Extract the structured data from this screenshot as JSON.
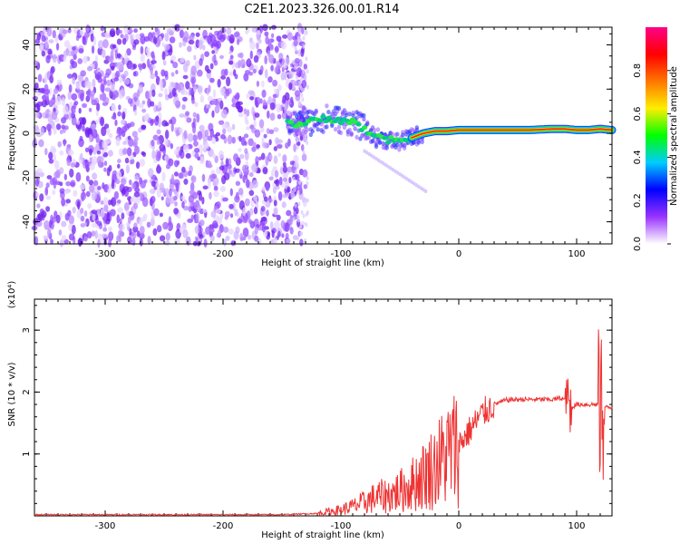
{
  "title": "C2E1.2023.326.00.01.R14",
  "chart_data": [
    {
      "type": "heatmap",
      "xlabel": "Height of straight line (km)",
      "ylabel": "Frequency (Hz)",
      "xlim": [
        -360,
        130
      ],
      "ylim": [
        -50,
        48
      ],
      "xticks": [
        -300,
        -200,
        -100,
        0,
        100
      ],
      "yticks": [
        -40,
        -20,
        0,
        20,
        40
      ],
      "colorbar": {
        "label": "Normalized spectral amplitude",
        "range": [
          0,
          1
        ],
        "ticks": [
          "0.0",
          "0.2",
          "0.4",
          "0.6",
          "0.8"
        ],
        "colormap": [
          "#ffffff",
          "#9933ff",
          "#0000ff",
          "#00ccff",
          "#00ff00",
          "#ffee00",
          "#ff7700",
          "#ff0000",
          "#ff0088"
        ]
      },
      "noise_region": {
        "x": [
          -360,
          -130
        ],
        "y": [
          -50,
          48
        ]
      },
      "signal_track": [
        {
          "x": -145,
          "f": 5
        },
        {
          "x": -135,
          "f": 4
        },
        {
          "x": -120,
          "f": 6
        },
        {
          "x": -110,
          "f": 7
        },
        {
          "x": -100,
          "f": 6
        },
        {
          "x": -90,
          "f": 5
        },
        {
          "x": -80,
          "f": 2
        },
        {
          "x": -70,
          "f": -2
        },
        {
          "x": -60,
          "f": -3
        },
        {
          "x": -50,
          "f": -4
        },
        {
          "x": -40,
          "f": -2
        },
        {
          "x": -30,
          "f": 0
        },
        {
          "x": -20,
          "f": 1
        },
        {
          "x": -10,
          "f": 1
        },
        {
          "x": 0,
          "f": 1.5
        },
        {
          "x": 20,
          "f": 1.5
        },
        {
          "x": 40,
          "f": 1.5
        },
        {
          "x": 60,
          "f": 1.5
        },
        {
          "x": 80,
          "f": 2
        },
        {
          "x": 90,
          "f": 2
        },
        {
          "x": 100,
          "f": 1.5
        },
        {
          "x": 110,
          "f": 1.5
        },
        {
          "x": 120,
          "f": 2
        },
        {
          "x": 130,
          "f": 1.5
        }
      ]
    },
    {
      "type": "line",
      "xlabel": "Height of straight line (km)",
      "ylabel": "SNR (10 * v/v)",
      "yscale_note": "(x10⁴)",
      "xlim": [
        -360,
        130
      ],
      "ylim": [
        0,
        3.5
      ],
      "xticks": [
        -300,
        -200,
        -100,
        0,
        100
      ],
      "yticks": [
        1,
        2,
        3
      ],
      "series": [
        {
          "color": "#ee3333",
          "x": [
            -360,
            -300,
            -200,
            -150,
            -120,
            -110,
            -100,
            -90,
            -80,
            -70,
            -60,
            -50,
            -40,
            -30,
            -20,
            -10,
            0,
            10,
            20,
            30,
            40,
            50,
            60,
            70,
            80,
            85,
            88,
            92,
            95,
            100,
            110,
            118,
            120,
            122,
            125,
            130
          ],
          "y": [
            0.02,
            0.02,
            0.02,
            0.02,
            0.04,
            0.07,
            0.1,
            0.15,
            0.22,
            0.3,
            0.33,
            0.4,
            0.5,
            0.65,
            0.8,
            1.0,
            1.15,
            1.4,
            1.65,
            1.8,
            1.87,
            1.88,
            1.88,
            1.88,
            1.88,
            1.9,
            1.9,
            1.85,
            1.75,
            1.8,
            1.8,
            1.8,
            1.75,
            1.78,
            1.75,
            1.75
          ]
        }
      ]
    }
  ]
}
